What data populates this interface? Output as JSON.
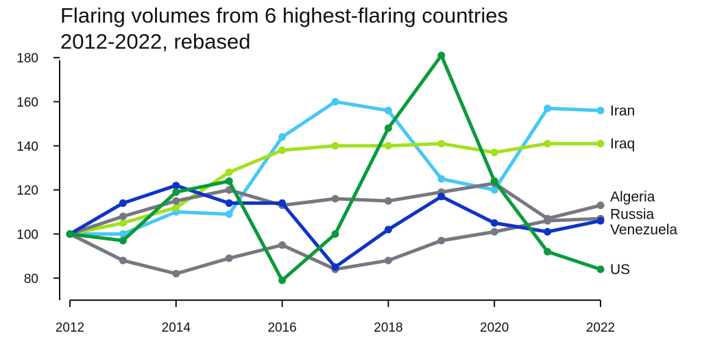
{
  "chart_data": {
    "type": "line",
    "title": "Flaring volumes from 6 highest-flaring countries 2012-2022, rebased",
    "title_lines": [
      "Flaring volumes from 6 highest-flaring countries",
      "2012-2022, rebased"
    ],
    "xlabel": "",
    "ylabel": "",
    "x": [
      2012,
      2013,
      2014,
      2015,
      2016,
      2017,
      2018,
      2019,
      2020,
      2021,
      2022
    ],
    "xlim": [
      2012,
      2022
    ],
    "ylim": [
      70,
      185
    ],
    "x_ticks": [
      2012,
      2014,
      2016,
      2018,
      2020,
      2022
    ],
    "y_ticks": [
      80,
      100,
      120,
      140,
      160,
      180
    ],
    "grid": false,
    "legend": "direct labels at line ends (right)",
    "series": [
      {
        "name": "Iran",
        "color": "#45c8f5",
        "values": [
          100,
          100,
          110,
          109,
          144,
          160,
          156,
          125,
          120,
          157,
          156
        ]
      },
      {
        "name": "Iraq",
        "color": "#a3e01e",
        "values": [
          100,
          105,
          112,
          128,
          138,
          140,
          140,
          141,
          137,
          141,
          141
        ]
      },
      {
        "name": "Algeria",
        "color": "#777781",
        "values": [
          100,
          108,
          115,
          120,
          113,
          116,
          115,
          119,
          123,
          107,
          113
        ]
      },
      {
        "name": "Russia",
        "color": "#777781",
        "values": [
          100,
          88,
          82,
          89,
          95,
          84,
          88,
          97,
          101,
          106,
          107
        ]
      },
      {
        "name": "Venezuela",
        "color": "#0f33c9",
        "values": [
          100,
          114,
          122,
          114,
          114,
          85,
          102,
          117,
          105,
          101,
          106
        ]
      },
      {
        "name": "US",
        "color": "#0a9a3a",
        "values": [
          100,
          97,
          119,
          124,
          79,
          100,
          148,
          181,
          124,
          92,
          84
        ]
      }
    ],
    "label_positions": {
      "Iran": 156,
      "Iraq": 141,
      "Algeria": 117,
      "Russia": 109,
      "Venezuela": 102,
      "US": 84
    }
  }
}
